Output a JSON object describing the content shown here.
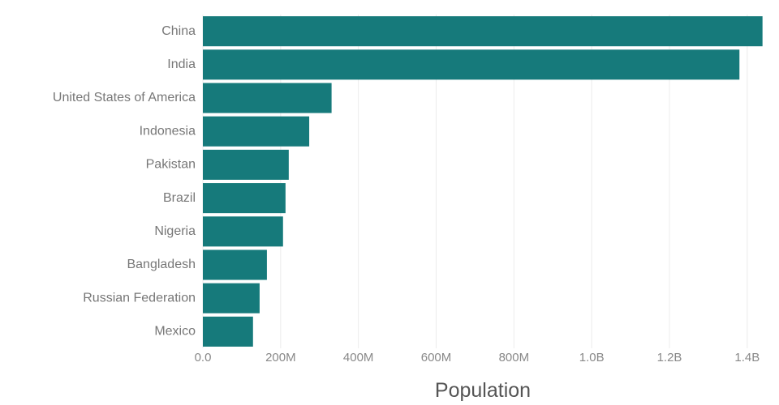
{
  "chart_data": {
    "type": "bar",
    "orientation": "horizontal",
    "categories": [
      "China",
      "India",
      "United States of America",
      "Indonesia",
      "Pakistan",
      "Brazil",
      "Nigeria",
      "Bangladesh",
      "Russian Federation",
      "Mexico"
    ],
    "values": [
      1439323776,
      1380004385,
      331002651,
      273523615,
      220892340,
      212559417,
      206139589,
      164689383,
      145934462,
      128932753
    ],
    "xlabel": "Population",
    "ylabel": "",
    "xlim": [
      0,
      1440000000
    ],
    "x_ticks": [
      0,
      200000000,
      400000000,
      600000000,
      800000000,
      1000000000,
      1200000000,
      1400000000
    ],
    "x_tick_labels": [
      "0.0",
      "200M",
      "400M",
      "600M",
      "800M",
      "1.0B",
      "1.2B",
      "1.4B"
    ],
    "grid": "vertical",
    "bar_color": "#167a7b"
  }
}
